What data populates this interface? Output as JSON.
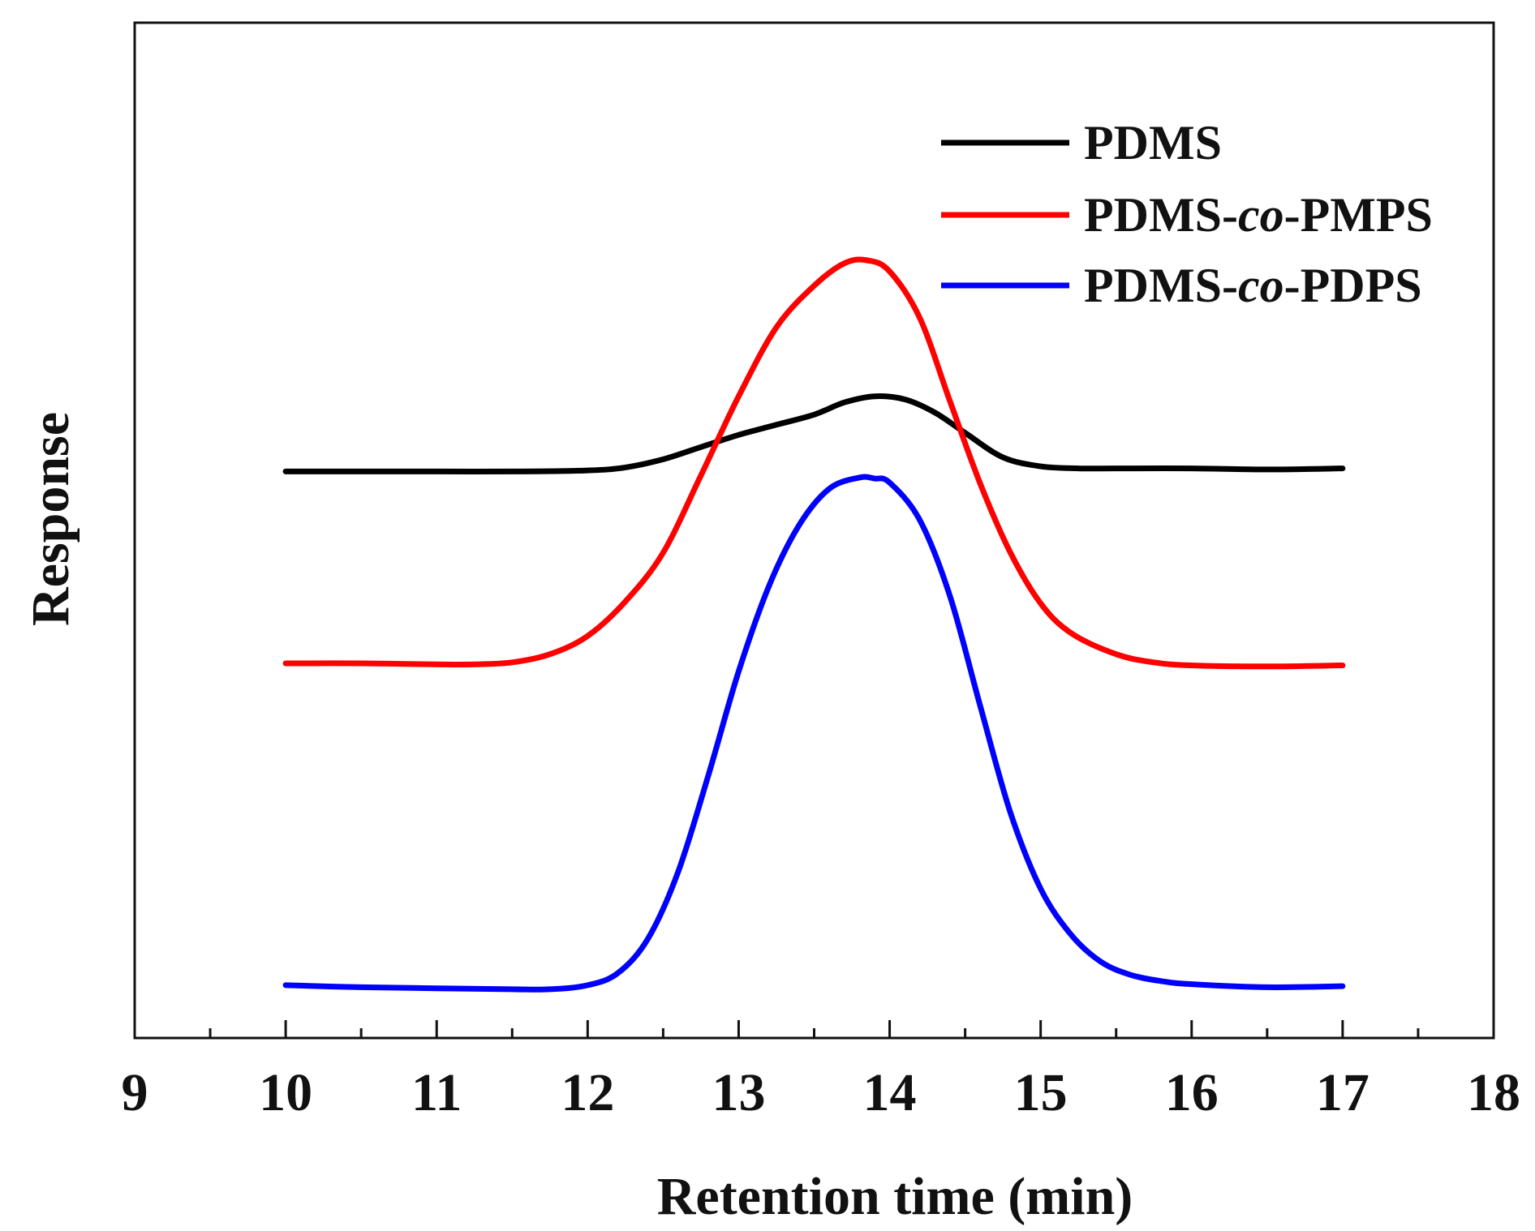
{
  "chart_data": {
    "type": "line",
    "title": "",
    "xlabel": "Retention time (min)",
    "ylabel": "Response",
    "xlim": [
      9,
      18
    ],
    "ylim": [
      0,
      1
    ],
    "x_ticks_major": [
      9,
      10,
      11,
      12,
      13,
      14,
      15,
      16,
      17,
      18
    ],
    "x_ticks_minor": [
      9.5,
      10.5,
      11.5,
      12.5,
      13.5,
      14.5,
      15.5,
      16.5,
      17.5
    ],
    "y_ticks_shown": false,
    "grid": false,
    "legend_position": "top-right",
    "series": [
      {
        "name": "PDMS",
        "name_parts": [
          {
            "text": "PDMS",
            "italic": false
          }
        ],
        "color": "#000000",
        "points": [
          [
            10.0,
            0.558
          ],
          [
            10.5,
            0.558
          ],
          [
            11.0,
            0.558
          ],
          [
            11.5,
            0.558
          ],
          [
            12.0,
            0.559
          ],
          [
            12.25,
            0.562
          ],
          [
            12.5,
            0.57
          ],
          [
            12.75,
            0.582
          ],
          [
            13.0,
            0.594
          ],
          [
            13.25,
            0.604
          ],
          [
            13.5,
            0.614
          ],
          [
            13.7,
            0.626
          ],
          [
            13.9,
            0.632
          ],
          [
            14.1,
            0.629
          ],
          [
            14.3,
            0.616
          ],
          [
            14.5,
            0.596
          ],
          [
            14.75,
            0.572
          ],
          [
            15.0,
            0.563
          ],
          [
            15.25,
            0.561
          ],
          [
            15.5,
            0.561
          ],
          [
            16.0,
            0.561
          ],
          [
            16.5,
            0.56
          ],
          [
            17.0,
            0.561
          ]
        ]
      },
      {
        "name": "PDMS-co-PMPS",
        "name_parts": [
          {
            "text": "PDMS-",
            "italic": false
          },
          {
            "text": "co",
            "italic": true
          },
          {
            "text": "-PMPS",
            "italic": false
          }
        ],
        "color": "#ff0000",
        "points": [
          [
            10.0,
            0.369
          ],
          [
            10.5,
            0.369
          ],
          [
            11.0,
            0.368
          ],
          [
            11.25,
            0.368
          ],
          [
            11.5,
            0.37
          ],
          [
            11.75,
            0.378
          ],
          [
            12.0,
            0.396
          ],
          [
            12.25,
            0.43
          ],
          [
            12.5,
            0.478
          ],
          [
            12.75,
            0.554
          ],
          [
            13.0,
            0.632
          ],
          [
            13.25,
            0.7
          ],
          [
            13.5,
            0.741
          ],
          [
            13.7,
            0.763
          ],
          [
            13.85,
            0.766
          ],
          [
            14.0,
            0.755
          ],
          [
            14.2,
            0.709
          ],
          [
            14.4,
            0.627
          ],
          [
            14.6,
            0.546
          ],
          [
            14.8,
            0.478
          ],
          [
            15.0,
            0.428
          ],
          [
            15.2,
            0.399
          ],
          [
            15.5,
            0.378
          ],
          [
            15.75,
            0.37
          ],
          [
            16.0,
            0.367
          ],
          [
            16.5,
            0.366
          ],
          [
            17.0,
            0.367
          ]
        ]
      },
      {
        "name": "PDMS-co-PDPS",
        "name_parts": [
          {
            "text": "PDMS-",
            "italic": false
          },
          {
            "text": "co",
            "italic": true
          },
          {
            "text": "-PDPS",
            "italic": false
          }
        ],
        "color": "#0000ff",
        "points": [
          [
            10.0,
            0.052
          ],
          [
            10.5,
            0.05
          ],
          [
            11.0,
            0.049
          ],
          [
            11.5,
            0.048
          ],
          [
            11.75,
            0.048
          ],
          [
            12.0,
            0.052
          ],
          [
            12.2,
            0.064
          ],
          [
            12.4,
            0.098
          ],
          [
            12.6,
            0.164
          ],
          [
            12.8,
            0.259
          ],
          [
            13.0,
            0.361
          ],
          [
            13.2,
            0.445
          ],
          [
            13.4,
            0.505
          ],
          [
            13.6,
            0.541
          ],
          [
            13.8,
            0.552
          ],
          [
            13.9,
            0.551
          ],
          [
            14.0,
            0.547
          ],
          [
            14.2,
            0.51
          ],
          [
            14.4,
            0.435
          ],
          [
            14.6,
            0.327
          ],
          [
            14.8,
            0.222
          ],
          [
            15.0,
            0.147
          ],
          [
            15.2,
            0.102
          ],
          [
            15.4,
            0.075
          ],
          [
            15.6,
            0.062
          ],
          [
            15.8,
            0.056
          ],
          [
            16.0,
            0.053
          ],
          [
            16.5,
            0.05
          ],
          [
            17.0,
            0.051
          ]
        ]
      }
    ]
  }
}
